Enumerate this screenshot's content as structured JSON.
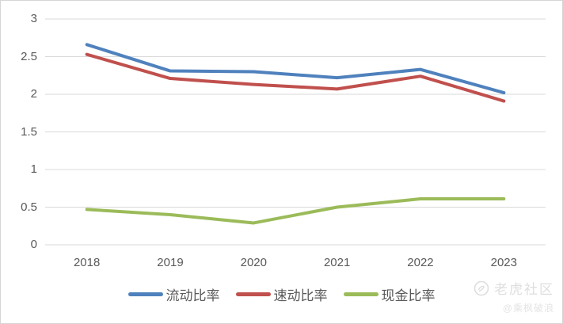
{
  "chart_data": {
    "type": "line",
    "title": "",
    "xlabel": "",
    "ylabel": "",
    "categories": [
      "2018",
      "2019",
      "2020",
      "2021",
      "2022",
      "2023"
    ],
    "series": [
      {
        "name": "流动比率",
        "color": "#4F81BD",
        "values": [
          2.66,
          2.31,
          2.3,
          2.22,
          2.33,
          2.02
        ]
      },
      {
        "name": "速动比率",
        "color": "#C0504D",
        "values": [
          2.53,
          2.21,
          2.13,
          2.07,
          2.24,
          1.91
        ]
      },
      {
        "name": "现金比率",
        "color": "#9BBB59",
        "values": [
          0.47,
          0.4,
          0.29,
          0.5,
          0.61,
          0.61
        ]
      }
    ],
    "ylim": [
      0,
      3
    ],
    "ytick_interval": 0.5,
    "ytick_labels": [
      "3",
      "2.5",
      "2",
      "1.5",
      "1",
      "0.5",
      "0"
    ],
    "grid": "horizontal",
    "gridline_color": "#D9D9D9",
    "legend_position": "bottom"
  },
  "watermark": {
    "brand": "老虎社区",
    "user": "@乘枫破浪"
  }
}
